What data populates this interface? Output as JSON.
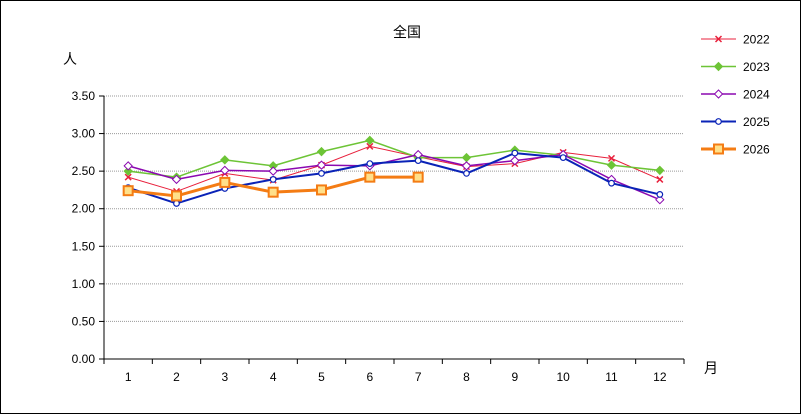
{
  "chart_data": {
    "type": "line",
    "title": "全国",
    "ylabel": "人",
    "xlabel": "月",
    "categories": [
      "1",
      "2",
      "3",
      "4",
      "5",
      "6",
      "7",
      "8",
      "9",
      "10",
      "11",
      "12"
    ],
    "ylim": [
      0,
      3.5
    ],
    "yticks": [
      "0.00",
      "0.50",
      "1.00",
      "1.50",
      "2.00",
      "2.50",
      "3.00",
      "3.50"
    ],
    "grid": true,
    "legend_position": "right",
    "series": [
      {
        "name": "2022",
        "color": "#e8203c",
        "marker": "x",
        "width": 1,
        "values": [
          2.42,
          2.23,
          2.47,
          2.38,
          2.58,
          2.83,
          2.69,
          2.56,
          2.6,
          2.75,
          2.67,
          2.39
        ]
      },
      {
        "name": "2023",
        "color": "#6dc436",
        "marker": "diamond",
        "width": 1.5,
        "values": [
          2.5,
          2.42,
          2.65,
          2.57,
          2.76,
          2.91,
          2.68,
          2.68,
          2.78,
          2.71,
          2.58,
          2.51
        ]
      },
      {
        "name": "2024",
        "color": "#8b08b0",
        "marker": "diamond-open",
        "width": 1.5,
        "values": [
          2.57,
          2.39,
          2.51,
          2.5,
          2.58,
          2.57,
          2.72,
          2.57,
          2.64,
          2.72,
          2.39,
          2.12
        ]
      },
      {
        "name": "2025",
        "color": "#0a23b7",
        "marker": "circle-open",
        "width": 2,
        "values": [
          2.28,
          2.07,
          2.27,
          2.39,
          2.47,
          2.6,
          2.64,
          2.47,
          2.74,
          2.68,
          2.34,
          2.19
        ]
      },
      {
        "name": "2026",
        "color": "#f47c14",
        "marker": "square-fill",
        "width": 3,
        "values": [
          2.24,
          2.17,
          2.35,
          2.22,
          2.25,
          2.42,
          2.42,
          null,
          null,
          null,
          null,
          null
        ]
      }
    ]
  }
}
